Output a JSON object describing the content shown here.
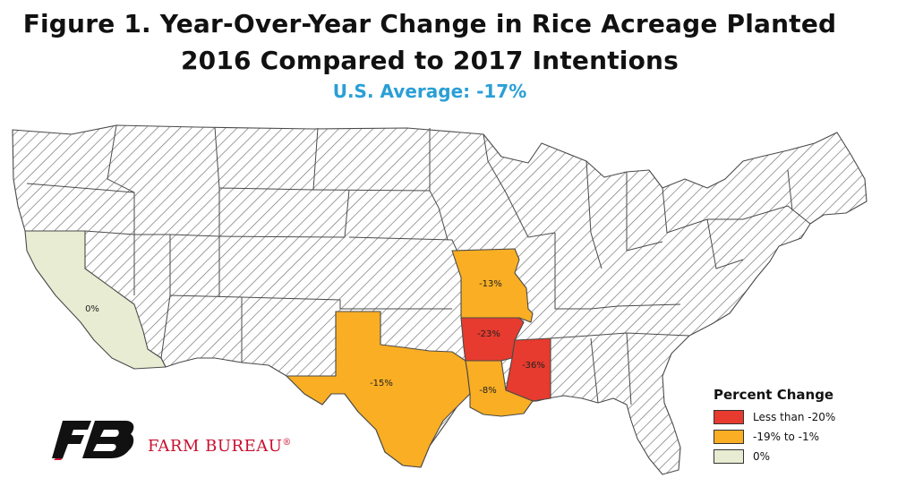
{
  "title": {
    "line1": "Figure 1. Year-Over-Year Change in Rice Acreage Planted",
    "line2": "2016 Compared to 2017 Intentions",
    "subtitle": "U.S. Average: -17%"
  },
  "colors": {
    "less_than_minus_20": "#e63b2e",
    "minus19_to_minus1": "#f9ae24",
    "zero": "#e8ecd2",
    "no_data_fill": "#ffffff",
    "hatch_stroke": "#6e6e6e",
    "border": "#4a4a4a",
    "subtitle": "#2a9fd6",
    "brand_red": "#c8102e"
  },
  "states": [
    {
      "name": "California",
      "label": "0%",
      "category": "zero"
    },
    {
      "name": "Missouri",
      "label": "-13%",
      "category": "minus19_to_minus1"
    },
    {
      "name": "Arkansas",
      "label": "-23%",
      "category": "less_than_minus_20"
    },
    {
      "name": "Mississippi",
      "label": "-36%",
      "category": "less_than_minus_20"
    },
    {
      "name": "Texas",
      "label": "-15%",
      "category": "minus19_to_minus1"
    },
    {
      "name": "Louisiana",
      "label": "-8%",
      "category": "minus19_to_minus1"
    }
  ],
  "legend": {
    "title": "Percent Change",
    "items": [
      {
        "label": "Less than -20%",
        "category": "less_than_minus_20"
      },
      {
        "label": "-19% to -1%",
        "category": "minus19_to_minus1"
      },
      {
        "label": "0%",
        "category": "zero"
      }
    ]
  },
  "brand": {
    "name": "FARM BUREAU",
    "registered": "®"
  },
  "icons": {
    "logo": "farm-bureau-fb-logo"
  }
}
